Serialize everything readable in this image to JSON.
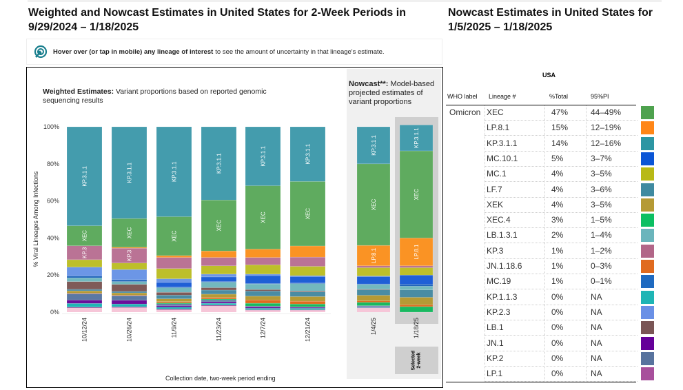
{
  "title_left": "Weighted and Nowcast Estimates in United States for 2-Week Periods in 9/29/2024 – 1/18/2025",
  "title_right": "Nowcast Estimates in United States for 1/5/2025 – 1/18/2025",
  "hint": {
    "icon": "cursor-target-icon",
    "bold": "Hover over (or tap in mobile) any lineage of interest",
    "rest": "to see the amount of uncertainty in that lineage's estimate."
  },
  "weighted_sub": {
    "bold": "Weighted Estimates:",
    "rest": " Variant proportions based on reported genomic sequencing results"
  },
  "nowcast_sub": {
    "bold": "Nowcast**:",
    "rest": " Model-based projected estimates of variant proportions"
  },
  "selected_label": "Selected\n2-week",
  "chart_data": {
    "type": "bar",
    "stacked": true,
    "ylabel": "% Viral Lineages Among Infections",
    "xlabel": "Collection date, two-week period ending",
    "ylim": [
      0,
      100
    ],
    "yticks": [
      "0%",
      "20%",
      "40%",
      "60%",
      "80%",
      "100%"
    ],
    "categories": [
      "10/12/24",
      "10/26/24",
      "11/9/24",
      "11/23/24",
      "12/7/24",
      "12/21/24",
      "1/4/25",
      "1/18/25"
    ],
    "nowcast_categories": [
      "1/4/25",
      "1/18/25"
    ],
    "selected": "1/18/25",
    "series": [
      {
        "name": "LP.1",
        "color": "#a24f9c",
        "values": [
          0.5,
          0.5,
          0.5,
          0.5,
          0.3,
          0.3,
          0.3,
          0
        ]
      },
      {
        "name": "KP.1.1.3",
        "color": "#1fb5b5",
        "values": [
          2,
          1.5,
          1,
          1,
          0.8,
          0.8,
          0.5,
          0
        ]
      },
      {
        "name": "JN.1",
        "color": "#6a0d9a",
        "values": [
          1.8,
          2,
          0.8,
          0.8,
          0.7,
          0.5,
          0.3,
          0
        ]
      },
      {
        "name": "KP.2",
        "color": "#5b78a3",
        "values": [
          3.5,
          2.5,
          1,
          1,
          0.5,
          0.3,
          0.2,
          0
        ]
      },
      {
        "name": "XEC.4",
        "color": "#19b960",
        "values": [
          0,
          0,
          0.5,
          0.5,
          1.5,
          1.5,
          1.8,
          3
        ]
      },
      {
        "name": "JN.1.18.6",
        "color": "#e06b1f",
        "values": [
          0.3,
          0.3,
          0.7,
          0.8,
          1.8,
          1.5,
          0.8,
          1
        ]
      },
      {
        "name": "XEK",
        "color": "#b59a35",
        "values": [
          1.2,
          1.2,
          1.5,
          1.8,
          2,
          2.5,
          3,
          4
        ]
      },
      {
        "name": "LF.7",
        "color": "#4a8ca3",
        "values": [
          0.8,
          0.8,
          2,
          2.2,
          2.8,
          2.5,
          3,
          4
        ]
      },
      {
        "name": "LB.1",
        "color": "#7f5a58",
        "values": [
          4.2,
          3.8,
          1.5,
          1.3,
          0.8,
          0.5,
          0.3,
          0
        ]
      },
      {
        "name": "LB.1.3.1",
        "color": "#73b8be",
        "values": [
          2,
          1.5,
          2.5,
          3,
          3,
          4,
          2.5,
          2
        ]
      },
      {
        "name": "MC.19",
        "color": "#2266bb",
        "values": [
          1,
          1,
          0.3,
          0.3,
          0.3,
          0.3,
          0.3,
          1
        ]
      },
      {
        "name": "MC.10.1",
        "color": "#1f5fd6",
        "values": [
          0,
          0,
          2.5,
          2.5,
          4.2,
          3.5,
          4,
          5
        ]
      },
      {
        "name": "KP.2.3",
        "color": "#6c96e6",
        "values": [
          4.8,
          5.5,
          2,
          1.5,
          0.8,
          0.5,
          0.3,
          0
        ]
      },
      {
        "name": "MC.1",
        "color": "#bdbf2a",
        "values": [
          4,
          3.5,
          5.5,
          4.5,
          5,
          5,
          4.5,
          4
        ]
      },
      {
        "name": "KP.3",
        "color": "#ba7395",
        "values": [
          7.5,
          8,
          6,
          4.5,
          4,
          5,
          1,
          1
        ]
      },
      {
        "name": "LP.8.1",
        "color": "#fa9324",
        "values": [
          0,
          0.5,
          1,
          3.5,
          4.5,
          6,
          11,
          15
        ]
      },
      {
        "name": "XEC",
        "color": "#5fab5f",
        "values": [
          10.8,
          15.5,
          21,
          27.5,
          34.2,
          34.8,
          44,
          47
        ]
      },
      {
        "name": "KP.3.1.1",
        "color": "#449cad",
        "values": [
          53.4,
          49.5,
          48.5,
          39.5,
          31.8,
          29.5,
          20,
          14
        ]
      }
    ]
  },
  "table": {
    "region": "USA",
    "headers": [
      "WHO label",
      "Lineage #",
      "%Total",
      "95%PI"
    ],
    "who_label": "Omicron",
    "rows": [
      {
        "lineage": "XEC",
        "total": "47%",
        "pi": "44–49%",
        "color": "#4ea24e"
      },
      {
        "lineage": "LP.8.1",
        "total": "15%",
        "pi": "12–19%",
        "color": "#ff8617"
      },
      {
        "lineage": "KP.3.1.1",
        "total": "14%",
        "pi": "12–16%",
        "color": "#2d96a3"
      },
      {
        "lineage": "MC.10.1",
        "total": "5%",
        "pi": "3–7%",
        "color": "#0a55d6"
      },
      {
        "lineage": "MC.1",
        "total": "4%",
        "pi": "3–5%",
        "color": "#b8b916"
      },
      {
        "lineage": "LF.7",
        "total": "4%",
        "pi": "3–6%",
        "color": "#3f8aa0"
      },
      {
        "lineage": "XEK",
        "total": "4%",
        "pi": "3–5%",
        "color": "#b59a35"
      },
      {
        "lineage": "XEC.4",
        "total": "3%",
        "pi": "1–5%",
        "color": "#0bbf62"
      },
      {
        "lineage": "LB.1.3.1",
        "total": "2%",
        "pi": "1–4%",
        "color": "#6bb5bc"
      },
      {
        "lineage": "KP.3",
        "total": "1%",
        "pi": "1–2%",
        "color": "#b26688"
      },
      {
        "lineage": "JN.1.18.6",
        "total": "1%",
        "pi": "0–3%",
        "color": "#e06b1f"
      },
      {
        "lineage": "MC.19",
        "total": "1%",
        "pi": "0–1%",
        "color": "#1f6ac0"
      },
      {
        "lineage": "KP.1.1.3",
        "total": "0%",
        "pi": "NA",
        "color": "#1fb5b5"
      },
      {
        "lineage": "KP.2.3",
        "total": "0%",
        "pi": "NA",
        "color": "#6a90e6"
      },
      {
        "lineage": "LB.1",
        "total": "0%",
        "pi": "NA",
        "color": "#7a5555"
      },
      {
        "lineage": "JN.1",
        "total": "0%",
        "pi": "NA",
        "color": "#650099"
      },
      {
        "lineage": "KP.2",
        "total": "0%",
        "pi": "NA",
        "color": "#58739e"
      },
      {
        "lineage": "LP.1",
        "total": "0%",
        "pi": "NA",
        "color": "#a8509c"
      }
    ]
  }
}
